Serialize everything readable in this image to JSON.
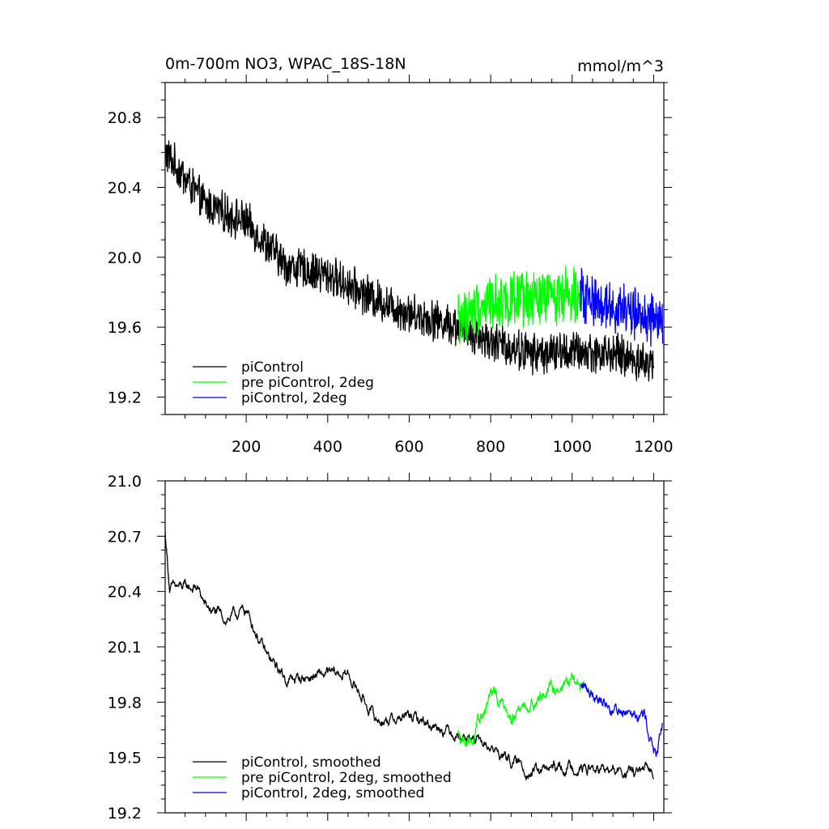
{
  "chart_data": [
    {
      "type": "line",
      "title": "0m-700m NO3, WPAC_18S-18N",
      "units": "mmol/m^3",
      "xlim": [
        1,
        1225
      ],
      "ylim": [
        19.1,
        21.0
      ],
      "xticks": [
        200,
        400,
        600,
        800,
        1000,
        1200
      ],
      "xtick_labels": [
        "200",
        "400",
        "600",
        "800",
        "1000",
        "1200"
      ],
      "yticks": [
        19.2,
        19.6,
        20.0,
        20.4,
        20.8
      ],
      "ytick_labels": [
        "19.2",
        "19.6",
        "20.0",
        "20.4",
        "20.8"
      ],
      "legend_position": "bottom-left",
      "series": [
        {
          "name": "piControl",
          "color": "#000000",
          "x_start": 1,
          "x_end": 1200,
          "trend": [
            [
              1,
              20.6
            ],
            [
              100,
              20.3
            ],
            [
              200,
              20.2
            ],
            [
              300,
              19.95
            ],
            [
              400,
              19.9
            ],
            [
              500,
              19.78
            ],
            [
              600,
              19.68
            ],
            [
              700,
              19.62
            ],
            [
              800,
              19.52
            ],
            [
              900,
              19.45
            ],
            [
              1000,
              19.46
            ],
            [
              1100,
              19.45
            ],
            [
              1200,
              19.38
            ]
          ],
          "noise_amplitude": 0.1
        },
        {
          "name": "pre piControl, 2deg",
          "color": "#00ff00",
          "x_start": 720,
          "x_end": 1030,
          "trend": [
            [
              720,
              19.65
            ],
            [
              800,
              19.75
            ],
            [
              900,
              19.75
            ],
            [
              1000,
              19.8
            ],
            [
              1030,
              19.82
            ]
          ],
          "noise_amplitude": 0.14
        },
        {
          "name": "piControl, 2deg",
          "color": "#0000ff",
          "x_start": 1020,
          "x_end": 1222,
          "trend": [
            [
              1020,
              19.78
            ],
            [
              1100,
              19.72
            ],
            [
              1150,
              19.68
            ],
            [
              1222,
              19.62
            ]
          ],
          "noise_amplitude": 0.13
        }
      ]
    },
    {
      "type": "line",
      "xlim": [
        1,
        1225
      ],
      "ylim": [
        19.2,
        21.0
      ],
      "yticks": [
        19.2,
        19.5,
        19.8,
        20.1,
        20.4,
        20.7,
        21.0
      ],
      "ytick_labels": [
        "19.2",
        "19.5",
        "19.8",
        "20.1",
        "20.4",
        "20.7",
        "21.0"
      ],
      "legend_position": "bottom-left",
      "series": [
        {
          "name": "piControl, smoothed",
          "color": "#000000",
          "x_start": 1,
          "x_end": 1200,
          "trend": [
            [
              1,
              20.72
            ],
            [
              12,
              20.42
            ],
            [
              80,
              20.42
            ],
            [
              100,
              20.32
            ],
            [
              150,
              20.25
            ],
            [
              200,
              20.3
            ],
            [
              250,
              20.05
            ],
            [
              300,
              19.92
            ],
            [
              400,
              19.95
            ],
            [
              450,
              19.95
            ],
            [
              520,
              19.7
            ],
            [
              600,
              19.72
            ],
            [
              700,
              19.65
            ],
            [
              800,
              19.55
            ],
            [
              900,
              19.42
            ],
            [
              1000,
              19.45
            ],
            [
              1100,
              19.42
            ],
            [
              1200,
              19.42
            ]
          ],
          "noise_amplitude": 0.04
        },
        {
          "name": "pre piControl, 2deg, smoothed",
          "color": "#00ff00",
          "x_start": 720,
          "x_end": 1030,
          "trend": [
            [
              720,
              19.62
            ],
            [
              760,
              19.6
            ],
            [
              800,
              19.85
            ],
            [
              850,
              19.75
            ],
            [
              900,
              19.8
            ],
            [
              960,
              19.88
            ],
            [
              1000,
              19.92
            ],
            [
              1030,
              19.88
            ]
          ],
          "noise_amplitude": 0.05
        },
        {
          "name": "piControl, 2deg, smoothed",
          "color": "#0000ff",
          "x_start": 1020,
          "x_end": 1222,
          "trend": [
            [
              1020,
              19.88
            ],
            [
              1060,
              19.85
            ],
            [
              1100,
              19.75
            ],
            [
              1150,
              19.78
            ],
            [
              1180,
              19.72
            ],
            [
              1200,
              19.55
            ],
            [
              1210,
              19.5
            ],
            [
              1222,
              19.68
            ]
          ],
          "noise_amplitude": 0.05
        }
      ]
    }
  ]
}
